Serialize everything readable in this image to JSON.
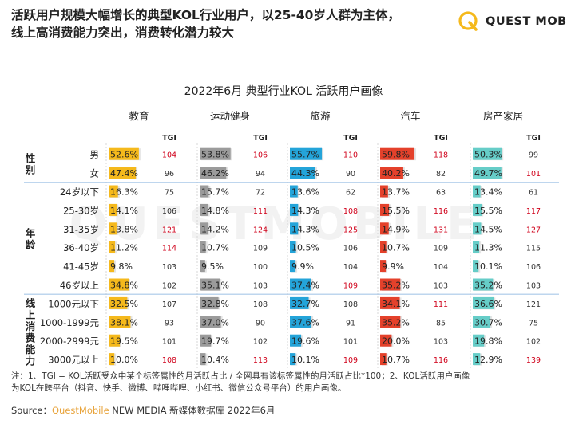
{
  "headline": {
    "line1": "活跃用户规模大幅增长的典型KOL行业用户，以25-40岁人群为主体，",
    "line2": "线上高消费能力突出，消费转化潜力较大"
  },
  "logo": {
    "text": "QUEST MOBILE",
    "watermark": "QUESTMOBILE"
  },
  "colors": {
    "edu": "#f5b91c",
    "sport": "#9b9b9b",
    "travel": "#24a4d9",
    "car": "#e4412b",
    "home": "#66cdc8",
    "tgi_high": "#d0021b",
    "tgi_normal": "#333333",
    "group_line": "#a9c8e8"
  },
  "chart_data": {
    "type": "table",
    "title": "2022年6月 典型行业KOL 活跃用户画像",
    "tgi_label": "TGI",
    "tgi_highlight_rule": "TGI >= 100 shown in red except where marked black in the source",
    "industries": [
      "教育",
      "运动健身",
      "旅游",
      "汽车",
      "房产家居"
    ],
    "groups": [
      {
        "label": "性别",
        "rows": [
          "男",
          "女"
        ]
      },
      {
        "label": "年龄",
        "rows": [
          "24岁以下",
          "25-30岁",
          "31-35岁",
          "36-40岁",
          "41-45岁",
          "46岁以上"
        ]
      },
      {
        "label": "线上消费能力",
        "rows": [
          "1000元以下",
          "1000-1999元",
          "2000-2999元",
          "3000元以上"
        ]
      }
    ],
    "row_labels": [
      "男",
      "女",
      "24岁以下",
      "25-30岁",
      "31-35岁",
      "36-40岁",
      "41-45岁",
      "46岁以上",
      "1000元以下",
      "1000-1999元",
      "2000-2999元",
      "3000元以上"
    ],
    "pct": [
      [
        52.6,
        47.4,
        16.3,
        14.1,
        13.8,
        11.2,
        9.8,
        34.8,
        32.5,
        38.1,
        19.5,
        10.0
      ],
      [
        53.8,
        46.2,
        15.7,
        14.8,
        14.2,
        10.7,
        9.5,
        35.1,
        32.8,
        37.0,
        19.7,
        10.4
      ],
      [
        55.7,
        44.3,
        13.6,
        14.3,
        14.3,
        10.5,
        9.9,
        37.4,
        32.7,
        37.6,
        19.6,
        10.1
      ],
      [
        59.8,
        40.2,
        13.7,
        15.5,
        14.9,
        10.7,
        9.9,
        35.2,
        34.1,
        35.2,
        20.0,
        10.7
      ],
      [
        50.3,
        49.7,
        13.4,
        15.5,
        14.5,
        11.3,
        10.1,
        35.2,
        36.6,
        30.7,
        19.8,
        12.9
      ]
    ],
    "pct_text": [
      [
        "52.6%",
        "47.4%",
        "16.3%",
        "14.1%",
        "13.8%",
        "11.2%",
        "9.8%",
        "34.8%",
        "32.5%",
        "38.1%",
        "19.5%",
        "10.0%"
      ],
      [
        "53.8%",
        "46.2%",
        "15.7%",
        "14.8%",
        "14.2%",
        "10.7%",
        "9.5%",
        "35.1%",
        "32.8%",
        "37.0%",
        "19.7%",
        "10.4%"
      ],
      [
        "55.7%",
        "44.3%",
        "13.6%",
        "14.3%",
        "14.3%",
        "10.5%",
        "9.9%",
        "37.4%",
        "32.7%",
        "37.6%",
        "19.6%",
        "10.1%"
      ],
      [
        "59.8%",
        "40.2%",
        "13.7%",
        "15.5%",
        "14.9%",
        "10.7%",
        "9.9%",
        "35.2%",
        "34.1%",
        "35.2%",
        "20.0%",
        "10.7%"
      ],
      [
        "50.3%",
        "49.7%",
        "13.4%",
        "15.5%",
        "14.5%",
        "11.3%",
        "10.1%",
        "35.2%",
        "36.6%",
        "30.7%",
        "19.8%",
        "12.9%"
      ]
    ],
    "tgi": [
      [
        104,
        96,
        75,
        106,
        121,
        114,
        103,
        102,
        107,
        93,
        101,
        108
      ],
      [
        106,
        94,
        72,
        111,
        124,
        109,
        100,
        103,
        108,
        90,
        102,
        113
      ],
      [
        110,
        90,
        62,
        108,
        125,
        106,
        104,
        109,
        108,
        91,
        101,
        109
      ],
      [
        118,
        82,
        63,
        116,
        131,
        109,
        104,
        103,
        111,
        85,
        103,
        116
      ],
      [
        99,
        101,
        61,
        117,
        127,
        115,
        106,
        103,
        121,
        75,
        102,
        139
      ]
    ],
    "tgi_red": [
      [
        true,
        false,
        false,
        false,
        true,
        true,
        false,
        false,
        false,
        false,
        false,
        true
      ],
      [
        true,
        false,
        false,
        true,
        true,
        false,
        false,
        false,
        false,
        false,
        false,
        true
      ],
      [
        true,
        false,
        false,
        true,
        true,
        false,
        false,
        true,
        false,
        false,
        false,
        true
      ],
      [
        true,
        false,
        false,
        true,
        true,
        false,
        false,
        false,
        true,
        false,
        false,
        true
      ],
      [
        false,
        true,
        false,
        true,
        true,
        false,
        false,
        false,
        false,
        false,
        false,
        true
      ]
    ]
  },
  "footnote": {
    "line1": "注：1、TGI = KOL活跃受众中某个标签属性的月活跃占比 / 全网具有该标签属性的月活跃占比*100；2、KOL活跃用户画像",
    "line2": "为KOL在跨平台（抖音、快手、微博、哔哩哔哩、小红书、微信公众号平台）的用户画像。"
  },
  "source": {
    "prefix": "Source：",
    "brand": "QuestMobile",
    "rest": " NEW MEDIA 新媒体数据库 2022年6月"
  }
}
